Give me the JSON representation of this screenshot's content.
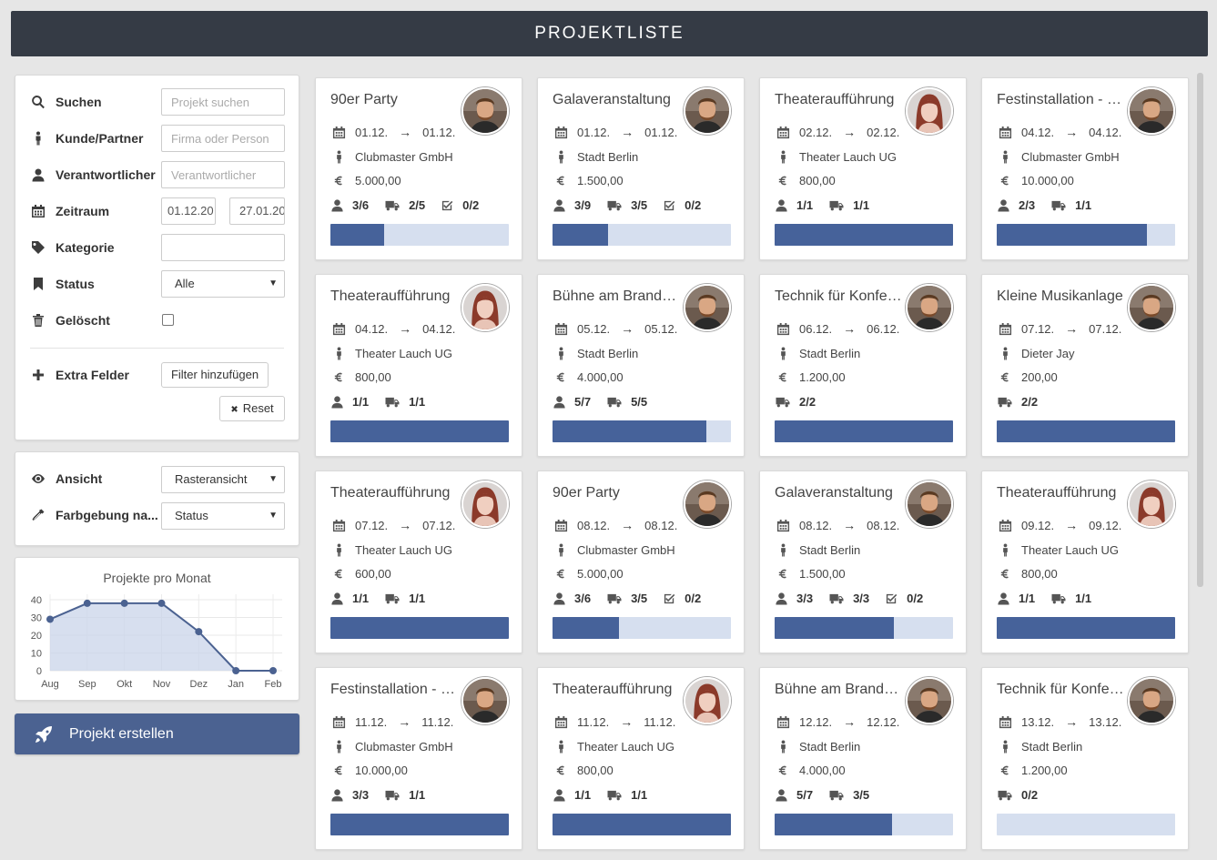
{
  "header": {
    "title": "PROJEKTLISTE"
  },
  "filters": {
    "search": {
      "label": "Suchen",
      "placeholder": "Projekt suchen"
    },
    "customer": {
      "label": "Kunde/Partner",
      "placeholder": "Firma oder Person"
    },
    "responsible": {
      "label": "Verantwortlicher",
      "placeholder": "Verantwortlicher"
    },
    "period": {
      "label": "Zeitraum",
      "from": "01.12.20",
      "to": "27.01.20"
    },
    "category": {
      "label": "Kategorie",
      "value": ""
    },
    "status": {
      "label": "Status",
      "value": "Alle"
    },
    "deleted": {
      "label": "Gelöscht"
    },
    "extra": {
      "label": "Extra Felder",
      "button": "Filter hinzufügen"
    },
    "reset": {
      "label": "Reset",
      "icon": "✖"
    }
  },
  "view": {
    "mode": {
      "label": "Ansicht",
      "value": "Rasteransicht"
    },
    "coloring": {
      "label": "Farbgebung na...",
      "value": "Status"
    }
  },
  "chart_data": {
    "type": "area",
    "title": "Projekte pro Monat",
    "categories": [
      "Aug",
      "Sep",
      "Okt",
      "Nov",
      "Dez",
      "Jan",
      "Feb"
    ],
    "values": [
      29,
      38,
      38,
      38,
      22,
      0,
      0
    ],
    "yticks": [
      "40",
      "30",
      "20",
      "10",
      "0"
    ],
    "ylim": [
      0,
      40
    ],
    "grid": true,
    "color": "#4b6291"
  },
  "create_button": {
    "label": "Projekt erstellen"
  },
  "projects": [
    {
      "title": "90er Party",
      "from": "01.12.",
      "to": "01.12.",
      "customer": "Clubmaster GmbH",
      "amount": "5.000,00",
      "persons": "3/6",
      "vehicles": "2/5",
      "tasks": "0/2",
      "progress": 0.3,
      "avatar": "male"
    },
    {
      "title": "Galaveranstaltung",
      "from": "01.12.",
      "to": "01.12.",
      "customer": "Stadt Berlin",
      "amount": "1.500,00",
      "persons": "3/9",
      "vehicles": "3/5",
      "tasks": "0/2",
      "progress": 0.31,
      "avatar": "male"
    },
    {
      "title": "Theateraufführung",
      "from": "02.12.",
      "to": "02.12.",
      "customer": "Theater Lauch UG",
      "amount": "800,00",
      "persons": "1/1",
      "vehicles": "1/1",
      "tasks": null,
      "progress": 1.0,
      "avatar": "female"
    },
    {
      "title": "Festinstallation - V...",
      "from": "04.12.",
      "to": "04.12.",
      "customer": "Clubmaster GmbH",
      "amount": "10.000,00",
      "persons": "2/3",
      "vehicles": "1/1",
      "tasks": null,
      "progress": 0.84,
      "avatar": "male"
    },
    {
      "title": "Theateraufführung",
      "from": "04.12.",
      "to": "04.12.",
      "customer": "Theater Lauch UG",
      "amount": "800,00",
      "persons": "1/1",
      "vehicles": "1/1",
      "tasks": null,
      "progress": 1.0,
      "avatar": "female"
    },
    {
      "title": "Bühne am Branden...",
      "from": "05.12.",
      "to": "05.12.",
      "customer": "Stadt Berlin",
      "amount": "4.000,00",
      "persons": "5/7",
      "vehicles": "5/5",
      "tasks": null,
      "progress": 0.86,
      "avatar": "male"
    },
    {
      "title": "Technik für Konfer...",
      "from": "06.12.",
      "to": "06.12.",
      "customer": "Stadt Berlin",
      "amount": "1.200,00",
      "persons": null,
      "vehicles": "2/2",
      "tasks": null,
      "progress": 1.0,
      "avatar": "male"
    },
    {
      "title": "Kleine Musikanlage",
      "from": "07.12.",
      "to": "07.12.",
      "customer": "Dieter Jay",
      "amount": "200,00",
      "persons": null,
      "vehicles": "2/2",
      "tasks": null,
      "progress": 1.0,
      "avatar": "male"
    },
    {
      "title": "Theateraufführung",
      "from": "07.12.",
      "to": "07.12.",
      "customer": "Theater Lauch UG",
      "amount": "600,00",
      "persons": "1/1",
      "vehicles": "1/1",
      "tasks": null,
      "progress": 1.0,
      "avatar": "female"
    },
    {
      "title": "90er Party",
      "from": "08.12.",
      "to": "08.12.",
      "customer": "Clubmaster GmbH",
      "amount": "5.000,00",
      "persons": "3/6",
      "vehicles": "3/5",
      "tasks": "0/2",
      "progress": 0.37,
      "avatar": "male"
    },
    {
      "title": "Galaveranstaltung",
      "from": "08.12.",
      "to": "08.12.",
      "customer": "Stadt Berlin",
      "amount": "1.500,00",
      "persons": "3/3",
      "vehicles": "3/3",
      "tasks": "0/2",
      "progress": 0.67,
      "avatar": "male"
    },
    {
      "title": "Theateraufführung",
      "from": "09.12.",
      "to": "09.12.",
      "customer": "Theater Lauch UG",
      "amount": "800,00",
      "persons": "1/1",
      "vehicles": "1/1",
      "tasks": null,
      "progress": 1.0,
      "avatar": "female"
    },
    {
      "title": "Festinstallation - V...",
      "from": "11.12.",
      "to": "11.12.",
      "customer": "Clubmaster GmbH",
      "amount": "10.000,00",
      "persons": "3/3",
      "vehicles": "1/1",
      "tasks": null,
      "progress": 1.0,
      "avatar": "male"
    },
    {
      "title": "Theateraufführung",
      "from": "11.12.",
      "to": "11.12.",
      "customer": "Theater Lauch UG",
      "amount": "800,00",
      "persons": "1/1",
      "vehicles": "1/1",
      "tasks": null,
      "progress": 1.0,
      "avatar": "female"
    },
    {
      "title": "Bühne am Branden...",
      "from": "12.12.",
      "to": "12.12.",
      "customer": "Stadt Berlin",
      "amount": "4.000,00",
      "persons": "5/7",
      "vehicles": "3/5",
      "tasks": null,
      "progress": 0.66,
      "avatar": "male"
    },
    {
      "title": "Technik für Konfer...",
      "from": "13.12.",
      "to": "13.12.",
      "customer": "Stadt Berlin",
      "amount": "1.200,00",
      "persons": null,
      "vehicles": "0/2",
      "tasks": null,
      "progress": 0.0,
      "avatar": "male"
    }
  ]
}
